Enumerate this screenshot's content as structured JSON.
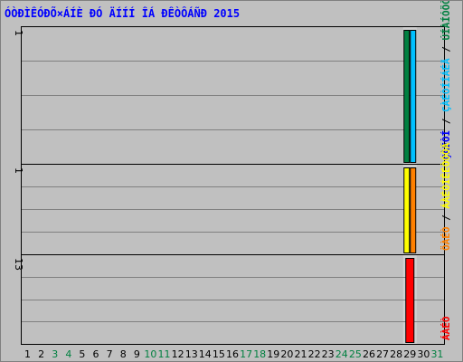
{
  "title": "ÓÒÐÌÊÓÐÕ×ÁÍÈ ÐÓ ÄÍÍÍ ÎÁ ÐÊÒÔÁÑÐ 2015",
  "chart_data": [
    {
      "type": "bar",
      "panel": "top",
      "ymax": 1,
      "ymax_label": "1",
      "x": [
        29
      ],
      "series": [
        {
          "name": "ÚÍÀÍÓÖÒ",
          "color": "#008040",
          "values": [
            1
          ]
        },
        {
          "name": "ÇÀÉÒÍ",
          "color": "#00c0ff",
          "values": [
            1
          ]
        }
      ],
      "side_legend": [
        {
          "text": "ÇÀÉÒÍ",
          "color": "#0000ff"
        },
        {
          "text": " / ",
          "color": "#000000"
        },
        {
          "text": "ÇÀÉÒÍÍÁÉÅ",
          "color": "#00c0ff"
        },
        {
          "text": " / ",
          "color": "#000000"
        },
        {
          "text": "ÚÍÀÍÓÖÒ",
          "color": "#008040"
        }
      ]
    },
    {
      "type": "bar",
      "panel": "middle",
      "ymax": 1,
      "ymax_label": "1",
      "x": [
        29
      ],
      "series": [
        {
          "name": "ÖÀÉÒ",
          "color": "#ffff00",
          "values": [
            1
          ]
        },
        {
          "name": "ÇÀÉÒÍ",
          "color": "#ff8000",
          "values": [
            1
          ]
        }
      ],
      "side_legend": [
        {
          "text": "ÖÀÉÒ",
          "color": "#ff8000"
        },
        {
          "text": " / ",
          "color": "#000000"
        },
        {
          "text": "ÁÀÉÒÍÊÉÒÓÔÄ",
          "color": "#ffff00"
        }
      ]
    },
    {
      "type": "bar",
      "panel": "bottom",
      "ymax": 13,
      "ymax_label": "13",
      "x": [
        29
      ],
      "series": [
        {
          "name": "ÁÀÉÒ",
          "color": "#ff0000",
          "values": [
            13
          ]
        }
      ],
      "side_legend": [
        {
          "text": "ÁÀÉÒ",
          "color": "#ff0000"
        }
      ]
    }
  ],
  "x_ticks": [
    {
      "label": "1",
      "color": "#000000"
    },
    {
      "label": "2",
      "color": "#000000"
    },
    {
      "label": "3",
      "color": "#008040"
    },
    {
      "label": "4",
      "color": "#008040"
    },
    {
      "label": "5",
      "color": "#000000"
    },
    {
      "label": "6",
      "color": "#000000"
    },
    {
      "label": "7",
      "color": "#000000"
    },
    {
      "label": "8",
      "color": "#000000"
    },
    {
      "label": "9",
      "color": "#000000"
    },
    {
      "label": "10",
      "color": "#008040"
    },
    {
      "label": "11",
      "color": "#008040"
    },
    {
      "label": "12",
      "color": "#000000"
    },
    {
      "label": "13",
      "color": "#000000"
    },
    {
      "label": "14",
      "color": "#000000"
    },
    {
      "label": "15",
      "color": "#000000"
    },
    {
      "label": "16",
      "color": "#000000"
    },
    {
      "label": "17",
      "color": "#008040"
    },
    {
      "label": "18",
      "color": "#008040"
    },
    {
      "label": "19",
      "color": "#000000"
    },
    {
      "label": "20",
      "color": "#000000"
    },
    {
      "label": "21",
      "color": "#000000"
    },
    {
      "label": "22",
      "color": "#000000"
    },
    {
      "label": "23",
      "color": "#000000"
    },
    {
      "label": "24",
      "color": "#008040"
    },
    {
      "label": "25",
      "color": "#008040"
    },
    {
      "label": "26",
      "color": "#000000"
    },
    {
      "label": "27",
      "color": "#000000"
    },
    {
      "label": "28",
      "color": "#000000"
    },
    {
      "label": "29",
      "color": "#000000"
    },
    {
      "label": "30",
      "color": "#000000"
    },
    {
      "label": "31",
      "color": "#008040"
    }
  ],
  "highlight_x": 29
}
